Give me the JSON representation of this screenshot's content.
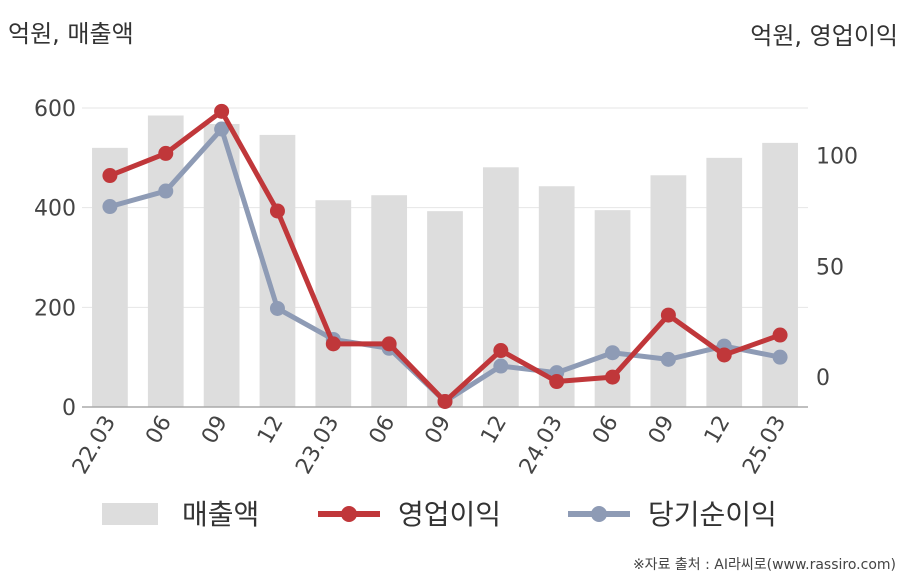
{
  "labels": {
    "left_unit": "억원, 매출액",
    "right_unit": "억원, 영업이익",
    "source": "※자료 출처 : AI라씨로(www.rassiro.com)"
  },
  "chart_data": {
    "type": "bar+line",
    "categories": [
      "22.03",
      "06",
      "09",
      "12",
      "23.03",
      "06",
      "09",
      "12",
      "24.03",
      "06",
      "09",
      "12",
      "25.03"
    ],
    "series": [
      {
        "name": "매출액",
        "type": "bar",
        "axis": "left",
        "color": "#dddddd",
        "values": [
          520,
          585,
          568,
          546,
          415,
          425,
          393,
          481,
          443,
          395,
          465,
          500,
          530
        ]
      },
      {
        "name": "영업이익",
        "type": "line",
        "axis": "right",
        "color": "#c0373a",
        "values": [
          91,
          101,
          120,
          75,
          15,
          15,
          -11,
          12,
          -2,
          0,
          28,
          10,
          19
        ]
      },
      {
        "name": "당기순이익",
        "type": "line",
        "axis": "right",
        "color": "#8e9bb5",
        "values": [
          77,
          84,
          112,
          31,
          17,
          13,
          -11,
          5,
          2,
          11,
          8,
          14,
          9
        ]
      }
    ],
    "y_left": {
      "min": 0,
      "max": 600,
      "ticks": [
        0,
        200,
        400,
        600
      ]
    },
    "y_right": {
      "min": -13.5,
      "max": 121.5,
      "ticks": [
        0,
        50,
        100
      ]
    },
    "grid": true,
    "legend": "bottom"
  }
}
